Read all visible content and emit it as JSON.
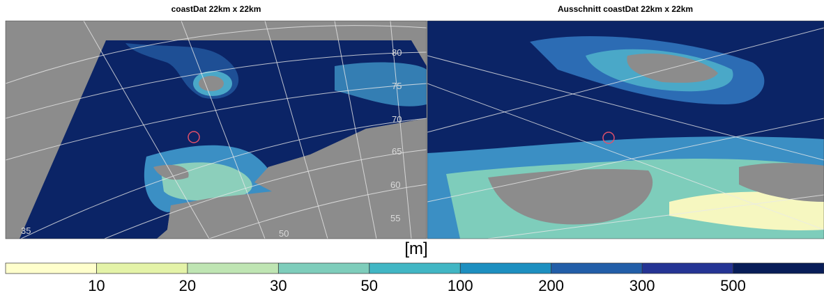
{
  "panels": [
    {
      "title": "coastDat 22km x 22km",
      "grid_labels": [
        "80",
        "75",
        "70",
        "65",
        "60",
        "55",
        "50",
        "35"
      ]
    },
    {
      "title": "Ausschnitt coastDat 22km x 22km"
    }
  ],
  "colorbar": {
    "label": "[m]",
    "ticks": [
      10,
      20,
      30,
      50,
      100,
      200,
      300,
      500
    ],
    "colors": [
      "#ffffcc",
      "#e4f3a8",
      "#bfe5b3",
      "#7ecdbb",
      "#41b6c4",
      "#1d8fc0",
      "#225ea8",
      "#253494",
      "#081d58"
    ]
  }
}
